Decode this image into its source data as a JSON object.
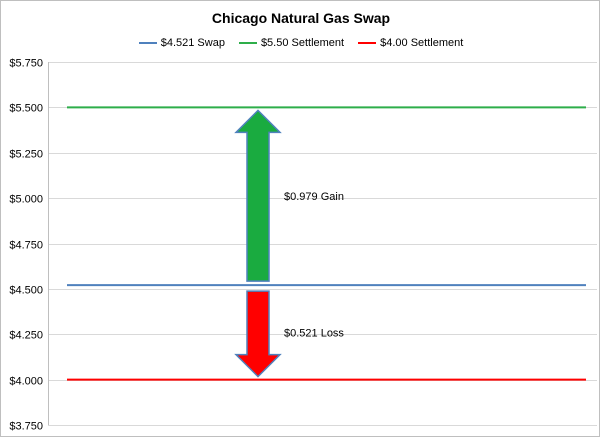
{
  "chart_data": {
    "type": "line",
    "title": "Chicago Natural Gas Swap",
    "xlabel": "",
    "ylabel": "",
    "ylim": [
      3.75,
      5.75
    ],
    "y_ticks": [
      "$3.750",
      "$4.000",
      "$4.250",
      "$4.500",
      "$4.750",
      "$5.000",
      "$5.250",
      "$5.500",
      "$5.750"
    ],
    "y_tick_values": [
      3.75,
      4.0,
      4.25,
      4.5,
      4.75,
      5.0,
      5.25,
      5.5,
      5.75
    ],
    "grid": true,
    "legend_position": "top",
    "series": [
      {
        "name": "$4.521 Swap",
        "value": 4.521,
        "color": "#4f81bd"
      },
      {
        "name": "$5.50 Settlement",
        "value": 5.5,
        "color": "#2eae4a"
      },
      {
        "name": "$4.00 Settlement",
        "value": 4.0,
        "color": "#ff0000"
      }
    ],
    "annotations": [
      {
        "text": "$0.979 Gain",
        "direction": "up",
        "from": 4.521,
        "to": 5.5,
        "fill": "#1aab40",
        "stroke": "#4f81bd"
      },
      {
        "text": "$0.521 Loss",
        "direction": "down",
        "from": 4.521,
        "to": 4.0,
        "fill": "#ff0000",
        "stroke": "#4f81bd"
      }
    ]
  }
}
